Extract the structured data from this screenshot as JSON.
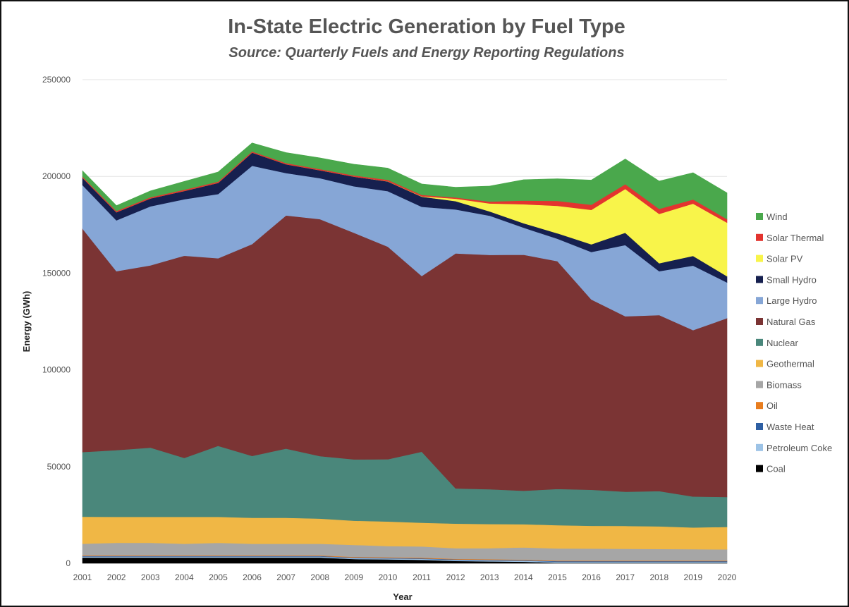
{
  "chart_data": {
    "type": "area",
    "stacked": true,
    "title": "In-State Electric Generation by Fuel Type",
    "subtitle": "Source: Quarterly Fuels and Energy Reporting Regulations",
    "xlabel": "Year",
    "ylabel": "Energy (GWh)",
    "ylim": [
      0,
      250000
    ],
    "yticks": [
      "0",
      "50000",
      "100000",
      "150000",
      "200000",
      "250000"
    ],
    "ytick_values": [
      0,
      50000,
      100000,
      150000,
      200000,
      250000
    ],
    "categories": [
      "2001",
      "2002",
      "2003",
      "2004",
      "2005",
      "2006",
      "2007",
      "2008",
      "2009",
      "2010",
      "2011",
      "2012",
      "2013",
      "2014",
      "2015",
      "2016",
      "2017",
      "2018",
      "2019",
      "2020"
    ],
    "legend_position": "right",
    "series": [
      {
        "name": "Coal",
        "color": "#000000",
        "values": [
          3000,
          3000,
          3000,
          3000,
          3000,
          3000,
          3000,
          3000,
          2200,
          2000,
          1800,
          1200,
          1000,
          800,
          300,
          300,
          300,
          300,
          300,
          300
        ]
      },
      {
        "name": "Petroleum Coke",
        "color": "#9dc3e6",
        "values": [
          500,
          500,
          500,
          500,
          500,
          500,
          500,
          500,
          500,
          500,
          500,
          500,
          500,
          500,
          500,
          500,
          500,
          500,
          500,
          500
        ]
      },
      {
        "name": "Waste Heat",
        "color": "#2e5fa3",
        "values": [
          300,
          300,
          300,
          300,
          300,
          300,
          300,
          300,
          300,
          300,
          300,
          300,
          300,
          300,
          300,
          300,
          300,
          300,
          300,
          300
        ]
      },
      {
        "name": "Oil",
        "color": "#e87d1f",
        "values": [
          300,
          300,
          300,
          300,
          300,
          300,
          300,
          300,
          300,
          300,
          300,
          300,
          300,
          300,
          300,
          300,
          300,
          300,
          300,
          300
        ]
      },
      {
        "name": "Biomass",
        "color": "#a6a6a6",
        "values": [
          6000,
          6500,
          6500,
          6000,
          6500,
          6000,
          6000,
          6000,
          6200,
          5800,
          5800,
          5500,
          5700,
          6300,
          6300,
          6200,
          6100,
          6000,
          5900,
          5800
        ]
      },
      {
        "name": "Geothermal",
        "color": "#f0b745",
        "values": [
          14000,
          13400,
          13400,
          13900,
          13400,
          13400,
          13400,
          13000,
          12500,
          12700,
          12300,
          12700,
          12500,
          12000,
          12000,
          11800,
          11800,
          11700,
          11200,
          11600
        ]
      },
      {
        "name": "Nuclear",
        "color": "#4a877b",
        "values": [
          33400,
          34500,
          35800,
          30500,
          36700,
          32000,
          35800,
          32300,
          31700,
          32200,
          36700,
          18200,
          18000,
          17300,
          18700,
          18600,
          17700,
          18200,
          16000,
          15500
        ]
      },
      {
        "name": "Natural Gas",
        "color": "#7b3434",
        "values": [
          115500,
          92500,
          94200,
          104500,
          97000,
          109500,
          120500,
          122500,
          117200,
          109900,
          90800,
          121500,
          121100,
          122000,
          117800,
          98400,
          90700,
          91000,
          86000,
          92400
        ]
      },
      {
        "name": "Large Hydro",
        "color": "#86a6d6",
        "values": [
          22500,
          26300,
          30500,
          29200,
          33200,
          40500,
          21900,
          21200,
          24000,
          28700,
          35800,
          22700,
          20300,
          14000,
          11600,
          24500,
          36800,
          22700,
          33400,
          18500
        ]
      },
      {
        "name": "Small Hydro",
        "color": "#16204f",
        "values": [
          3800,
          4200,
          4100,
          4300,
          5800,
          6800,
          4600,
          4100,
          5000,
          5000,
          5200,
          4300,
          2200,
          2300,
          2800,
          4000,
          6400,
          4100,
          5000,
          3200
        ]
      },
      {
        "name": "Solar PV",
        "color": "#f8f44a",
        "values": [
          0,
          0,
          0,
          0,
          0,
          0,
          0,
          0,
          0,
          100,
          200,
          1300,
          4100,
          9800,
          14200,
          17800,
          22600,
          25500,
          27000,
          27700
        ]
      },
      {
        "name": "Solar Thermal",
        "color": "#e3342f",
        "values": [
          600,
          600,
          600,
          600,
          600,
          600,
          600,
          600,
          600,
          700,
          700,
          600,
          1000,
          1900,
          2500,
          2600,
          2500,
          2600,
          2200,
          1800
        ]
      },
      {
        "name": "Wind",
        "color": "#4aa84c",
        "values": [
          3000,
          2800,
          3300,
          4300,
          5000,
          4400,
          5400,
          5800,
          5800,
          6100,
          5700,
          5300,
          8000,
          10800,
          11500,
          12800,
          13000,
          14400,
          13800,
          13600
        ]
      }
    ]
  }
}
